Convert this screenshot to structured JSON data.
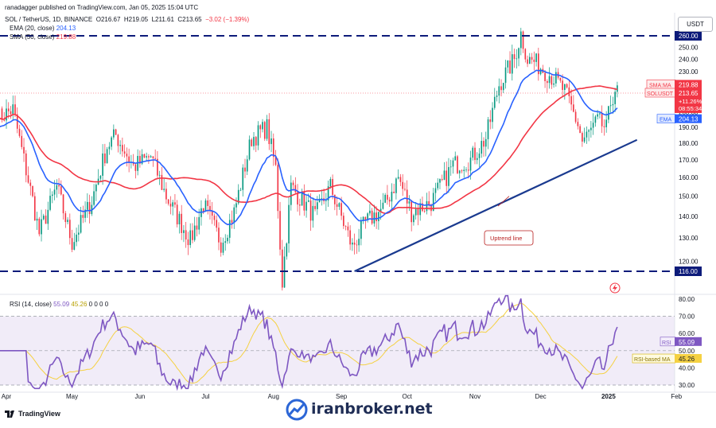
{
  "header": {
    "publisher": "ranadagger published on TradingView.com, Jan 05, 2025 15:04 UTC",
    "symbol": "SOL / TetherUS, 1D, BINANCE",
    "o_label": "O",
    "o": "216.67",
    "h_label": "H",
    "h": "219.05",
    "l_label": "L",
    "l": "211.61",
    "c_label": "C",
    "c": "213.65",
    "change": "−3.02 (−1.39%)"
  },
  "indicators": {
    "ema_label": "EMA (20, close)",
    "ema_value": "204.13",
    "sma_label": "SMA (50, close)",
    "sma_value": "219.88",
    "rsi_label": "RSI (14, close)",
    "rsi_value": "55.09",
    "rsi_ma_value": "45.26",
    "rsi_extra": "0  0  0  0"
  },
  "currency": "USDT",
  "colors": {
    "up": "#089981",
    "down": "#f23645",
    "ema": "#2962ff",
    "sma": "#f23645",
    "rsi": "#7e57c2",
    "rsi_ma": "#f5d142",
    "trendline": "#1a3a8f",
    "level": "#0d1b7a"
  },
  "chart_data": [
    {
      "type": "candlestick",
      "title": "SOL / TetherUS, 1D, BINANCE",
      "y_scale": "log",
      "ylim": [
        110,
        270
      ],
      "price_ticks": [
        "260.00",
        "250.00",
        "240.00",
        "230.00",
        "220.00",
        "210.00",
        "200.00",
        "190.00",
        "180.00",
        "170.00",
        "160.00",
        "150.00",
        "140.00",
        "130.00",
        "120.00",
        "116.00"
      ],
      "x_ticks": [
        "Apr",
        "May",
        "Jun",
        "Jul",
        "Aug",
        "Sep",
        "Oct",
        "Nov",
        "Dec",
        "2025",
        "Feb"
      ],
      "horizontal_levels": [
        {
          "value": 260.0,
          "label": "260.00"
        },
        {
          "value": 116.0,
          "label": "116.00"
        }
      ],
      "trendline": {
        "label": "Uptrend line",
        "from": {
          "x": "2024-09-07",
          "y": 116
        },
        "to": {
          "x": "2025-01-14",
          "y": 182
        }
      },
      "series_labels": [
        {
          "name": "SMA:MA",
          "value": "219.88"
        },
        {
          "name": "SOLUSDT",
          "value": "213.65",
          "change": "+11.26%",
          "countdown": "08:55:34"
        },
        {
          "name": "EMA",
          "value": "204.13"
        }
      ],
      "monthly_closes": [
        {
          "x": "Apr",
          "y": 199
        },
        {
          "x": "May",
          "y": 125
        },
        {
          "x": "Jun",
          "y": 169
        },
        {
          "x": "Jul",
          "y": 150
        },
        {
          "x": "Aug",
          "y": 130
        },
        {
          "x": "Sep",
          "y": 135
        },
        {
          "x": "Oct",
          "y": 148
        },
        {
          "x": "Nov",
          "y": 168
        },
        {
          "x": "Dec",
          "y": 243
        },
        {
          "x": "2025",
          "y": 214
        }
      ],
      "key_points": [
        {
          "x": "Mar end",
          "y": 205
        },
        {
          "x": "Apr mid",
          "y": 122
        },
        {
          "x": "May mid",
          "y": 178
        },
        {
          "x": "Jul end",
          "y": 192
        },
        {
          "x": "Aug 5",
          "y": 112
        },
        {
          "x": "Sep 7",
          "y": 122
        },
        {
          "x": "Nov 22",
          "y": 264
        },
        {
          "x": "Dec 23",
          "y": 176
        },
        {
          "x": "Jan 05",
          "y": 213.65
        }
      ]
    },
    {
      "type": "line",
      "title": "RSI (14, close)",
      "ylim": [
        28,
        82
      ],
      "y_ticks": [
        "80.00",
        "70.00",
        "60.00",
        "50.00",
        "40.00",
        "30.00"
      ],
      "band": [
        30,
        70
      ],
      "series": [
        {
          "name": "RSI",
          "last": "55.09"
        },
        {
          "name": "RSI-based MA",
          "last": "45.26"
        }
      ]
    }
  ]
}
